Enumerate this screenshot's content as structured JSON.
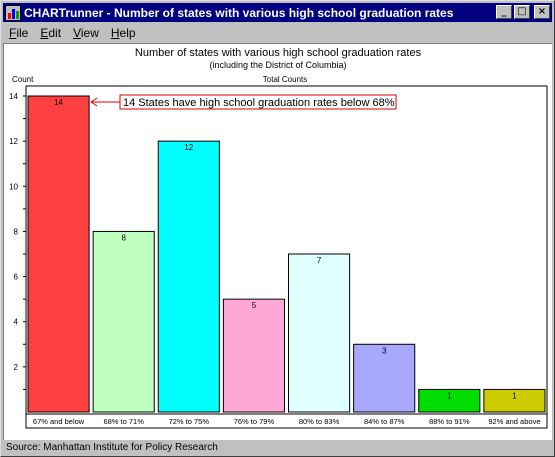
{
  "window": {
    "title": "CHARTrunner - Number of states with various high school graduation rates",
    "buttons": {
      "minimize": "_",
      "maximize": "□",
      "close": "×"
    }
  },
  "menu": [
    {
      "label_u": "F",
      "label_rest": "ile"
    },
    {
      "label_u": "E",
      "label_rest": "dit"
    },
    {
      "label_u": "V",
      "label_rest": "iew"
    },
    {
      "label_u": "H",
      "label_rest": "elp"
    }
  ],
  "chart_data": {
    "type": "bar",
    "title": "Number of states with various high school graduation rates",
    "subtitle": "(including the District of Columbia)",
    "ylabel": "Count",
    "series_label": "Total Counts",
    "ylim": [
      0,
      14
    ],
    "yticks": [
      2,
      4,
      6,
      8,
      10,
      12,
      14
    ],
    "categories": [
      "67% and below",
      "68% to 71%",
      "72% to 75%",
      "76% to 79%",
      "80% to 83%",
      "84% to 87%",
      "88% to 91%",
      "92% and above"
    ],
    "values": [
      14,
      8,
      12,
      5,
      7,
      3,
      1,
      1
    ],
    "colors": [
      "#ff4040",
      "#bfffbf",
      "#00ffff",
      "#ffa8d8",
      "#e0ffff",
      "#a8a8ff",
      "#00dd00",
      "#cccc00"
    ],
    "annotation": "14 States have high school graduation rates below 68%",
    "grid": false
  },
  "status": "Source: Manhattan Institute for Policy Research"
}
